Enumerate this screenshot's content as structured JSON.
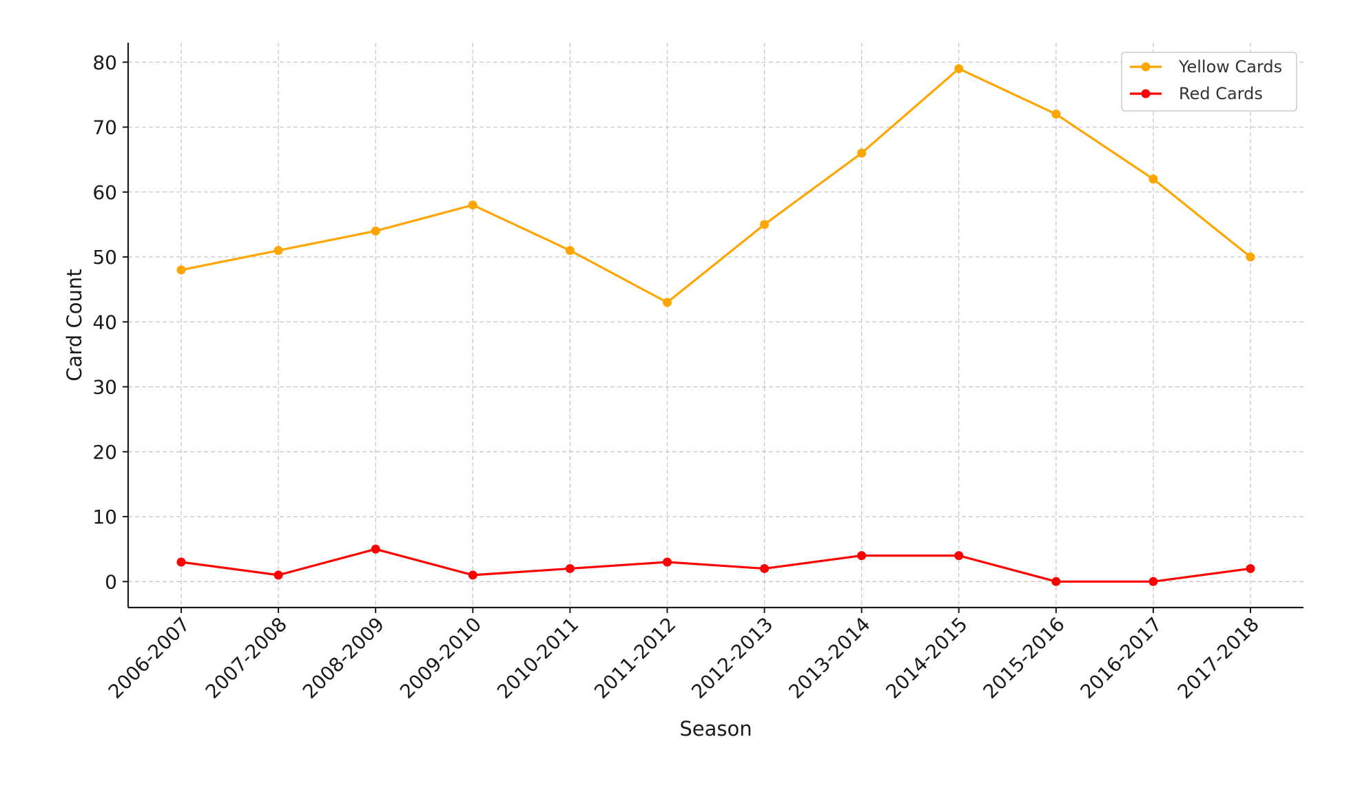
{
  "chart_data": {
    "type": "line",
    "title": "",
    "xlabel": "Season",
    "ylabel": "Card Count",
    "categories": [
      "2006-2007",
      "2007-2008",
      "2008-2009",
      "2009-2010",
      "2010-2011",
      "2011-2012",
      "2012-2013",
      "2013-2014",
      "2014-2015",
      "2015-2016",
      "2016-2017",
      "2017-2018"
    ],
    "series": [
      {
        "name": "Yellow Cards",
        "color": "#FFA500",
        "values": [
          48,
          51,
          54,
          58,
          51,
          43,
          55,
          66,
          79,
          72,
          62,
          50
        ]
      },
      {
        "name": "Red Cards",
        "color": "#FF0000",
        "values": [
          3,
          1,
          5,
          1,
          2,
          3,
          2,
          4,
          4,
          0,
          0,
          2
        ]
      }
    ],
    "yticks": [
      0,
      10,
      20,
      30,
      40,
      50,
      60,
      70,
      80
    ],
    "ylim": [
      -4,
      83
    ],
    "grid": true,
    "legend_position": "top-right"
  }
}
